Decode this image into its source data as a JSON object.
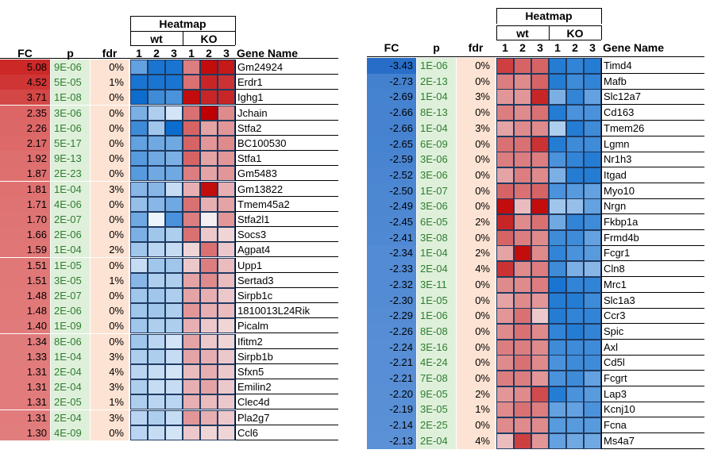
{
  "chart_data": [
    {
      "type": "heatmap",
      "title": "Heatmap",
      "headers": {
        "fc": "FC",
        "p": "p",
        "fdr": "fdr",
        "gene": "Gene Name"
      },
      "groups": [
        "wt",
        "KO"
      ],
      "replicates": [
        "1",
        "2",
        "3",
        "1",
        "2",
        "3"
      ],
      "rows": [
        {
          "fc": "5.08",
          "p": "9E-06",
          "fdr": "0%",
          "gene": "Gm24924",
          "heat": [
            -0.6,
            -0.9,
            -0.9,
            0.5,
            0.95,
            0.9
          ]
        },
        {
          "fc": "4.52",
          "p": "5E-05",
          "fdr": "1%",
          "gene": "Erdr1",
          "heat": [
            -0.9,
            -0.9,
            -0.9,
            0.55,
            0.85,
            0.8
          ]
        },
        {
          "fc": "3.71",
          "p": "1E-08",
          "fdr": "0%",
          "gene": "Ighg1",
          "heat": [
            -0.95,
            -0.75,
            -0.7,
            0.95,
            0.85,
            0.85
          ]
        },
        {
          "fc": "2.35",
          "p": "3E-06",
          "fdr": "0%",
          "gene": "Jchain",
          "heat": [
            -0.5,
            -0.3,
            -0.15,
            0.55,
            1.0,
            0.45
          ]
        },
        {
          "fc": "2.26",
          "p": "1E-06",
          "fdr": "0%",
          "gene": "Stfa2",
          "heat": [
            -0.75,
            -0.35,
            -0.95,
            0.6,
            0.35,
            0.4
          ]
        },
        {
          "fc": "2.17",
          "p": "5E-17",
          "fdr": "0%",
          "gene": "BC100530",
          "heat": [
            -0.6,
            -0.55,
            -0.55,
            0.6,
            0.4,
            0.45
          ]
        },
        {
          "fc": "1.92",
          "p": "9E-13",
          "fdr": "0%",
          "gene": "Stfa1",
          "heat": [
            -0.65,
            -0.55,
            -0.5,
            0.6,
            0.35,
            0.4
          ]
        },
        {
          "fc": "1.87",
          "p": "2E-23",
          "fdr": "0%",
          "gene": "Gm5483",
          "heat": [
            -0.65,
            -0.55,
            -0.55,
            0.5,
            0.35,
            0.4
          ]
        },
        {
          "fc": "1.81",
          "p": "1E-04",
          "fdr": "3%",
          "gene": "Gm13822",
          "heat": [
            -0.45,
            -0.45,
            -0.2,
            0.3,
            0.95,
            0.3
          ]
        },
        {
          "fc": "1.71",
          "p": "4E-06",
          "fdr": "0%",
          "gene": "Tmem45a2",
          "heat": [
            -0.4,
            -0.45,
            -0.55,
            0.55,
            0.3,
            0.35
          ]
        },
        {
          "fc": "1.70",
          "p": "2E-07",
          "fdr": "0%",
          "gene": "Stfa2l1",
          "heat": [
            -0.55,
            -0.05,
            -0.7,
            0.5,
            0.05,
            0.4
          ]
        },
        {
          "fc": "1.66",
          "p": "2E-06",
          "fdr": "0%",
          "gene": "Socs3",
          "heat": [
            -0.5,
            -0.35,
            -0.3,
            0.55,
            0.2,
            0.15
          ]
        },
        {
          "fc": "1.59",
          "p": "1E-04",
          "fdr": "2%",
          "gene": "Agpat4",
          "heat": [
            -0.35,
            -0.25,
            -0.2,
            0.15,
            0.55,
            0.2
          ]
        },
        {
          "fc": "1.51",
          "p": "1E-05",
          "fdr": "0%",
          "gene": "Upp1",
          "heat": [
            -0.2,
            -0.35,
            -0.35,
            0.2,
            0.5,
            0.25
          ]
        },
        {
          "fc": "1.51",
          "p": "3E-05",
          "fdr": "1%",
          "gene": "Sertad3",
          "heat": [
            -0.45,
            -0.3,
            -0.3,
            0.35,
            0.45,
            0.25
          ]
        },
        {
          "fc": "1.48",
          "p": "2E-07",
          "fdr": "0%",
          "gene": "Sirpb1c",
          "heat": [
            -0.35,
            -0.35,
            -0.3,
            0.35,
            0.3,
            0.2
          ]
        },
        {
          "fc": "1.48",
          "p": "2E-06",
          "fdr": "0%",
          "gene": "1810013L24Rik",
          "heat": [
            -0.35,
            -0.35,
            -0.3,
            0.4,
            0.3,
            0.25
          ]
        },
        {
          "fc": "1.40",
          "p": "1E-09",
          "fdr": "0%",
          "gene": "Picalm",
          "heat": [
            -0.35,
            -0.3,
            -0.3,
            0.3,
            0.2,
            0.15
          ]
        },
        {
          "fc": "1.34",
          "p": "8E-06",
          "fdr": "0%",
          "gene": "Ifitm2",
          "heat": [
            -0.35,
            -0.25,
            -0.15,
            0.35,
            0.2,
            0.15
          ]
        },
        {
          "fc": "1.33",
          "p": "1E-04",
          "fdr": "3%",
          "gene": "Sirpb1b",
          "heat": [
            -0.3,
            -0.3,
            -0.2,
            0.35,
            0.3,
            0.2
          ]
        },
        {
          "fc": "1.31",
          "p": "2E-04",
          "fdr": "4%",
          "gene": "Sfxn5",
          "heat": [
            -0.25,
            -0.2,
            -0.15,
            0.25,
            0.3,
            0.2
          ]
        },
        {
          "fc": "1.31",
          "p": "2E-04",
          "fdr": "3%",
          "gene": "Emilin2",
          "heat": [
            -0.3,
            -0.2,
            -0.2,
            0.3,
            0.35,
            0.2
          ]
        },
        {
          "fc": "1.31",
          "p": "2E-05",
          "fdr": "1%",
          "gene": "Clec4d",
          "heat": [
            -0.3,
            -0.25,
            -0.25,
            0.3,
            0.25,
            0.2
          ]
        },
        {
          "fc": "1.31",
          "p": "2E-04",
          "fdr": "3%",
          "gene": "Pla2g7",
          "heat": [
            -0.25,
            -0.3,
            -0.2,
            0.4,
            0.3,
            0.2
          ]
        },
        {
          "fc": "1.30",
          "p": "4E-09",
          "fdr": "0%",
          "gene": "Ccl6",
          "heat": [
            -0.25,
            -0.2,
            -0.15,
            0.2,
            0.15,
            0.15
          ]
        }
      ]
    },
    {
      "type": "heatmap",
      "title": "Heatmap",
      "headers": {
        "fc": "FC",
        "p": "p",
        "fdr": "fdr",
        "gene": "Gene Name"
      },
      "groups": [
        "wt",
        "KO"
      ],
      "replicates": [
        "1",
        "2",
        "3",
        "1",
        "2",
        "3"
      ],
      "rows": [
        {
          "fc": "-3.43",
          "p": "1E-06",
          "fdr": "0%",
          "gene": "Timd4",
          "heat": [
            0.75,
            0.6,
            0.6,
            -0.85,
            -0.8,
            -0.85
          ]
        },
        {
          "fc": "-2.73",
          "p": "2E-13",
          "fdr": "0%",
          "gene": "Mafb",
          "heat": [
            0.5,
            0.45,
            0.6,
            -0.85,
            -0.75,
            -0.8
          ]
        },
        {
          "fc": "-2.69",
          "p": "1E-04",
          "fdr": "3%",
          "gene": "Slc12a7",
          "heat": [
            0.4,
            0.4,
            0.85,
            -0.5,
            -0.8,
            -0.6
          ]
        },
        {
          "fc": "-2.66",
          "p": "8E-13",
          "fdr": "0%",
          "gene": "Cd163",
          "heat": [
            0.5,
            0.45,
            0.55,
            -0.85,
            -0.7,
            -0.7
          ]
        },
        {
          "fc": "-2.66",
          "p": "1E-04",
          "fdr": "3%",
          "gene": "Tmem26",
          "heat": [
            0.35,
            0.45,
            0.45,
            -0.3,
            -0.85,
            -0.75
          ]
        },
        {
          "fc": "-2.65",
          "p": "6E-09",
          "fdr": "0%",
          "gene": "Lgmn",
          "heat": [
            0.55,
            0.55,
            0.8,
            -0.85,
            -0.75,
            -0.75
          ]
        },
        {
          "fc": "-2.59",
          "p": "3E-06",
          "fdr": "0%",
          "gene": "Nr1h3",
          "heat": [
            0.5,
            0.5,
            0.5,
            -0.7,
            -0.8,
            -0.85
          ]
        },
        {
          "fc": "-2.52",
          "p": "3E-06",
          "fdr": "0%",
          "gene": "Itgad",
          "heat": [
            0.35,
            0.5,
            0.45,
            -0.5,
            -0.85,
            -0.85
          ]
        },
        {
          "fc": "-2.50",
          "p": "1E-07",
          "fdr": "0%",
          "gene": "Myo10",
          "heat": [
            0.6,
            0.55,
            0.6,
            -0.7,
            -0.65,
            -0.6
          ]
        },
        {
          "fc": "-2.49",
          "p": "3E-06",
          "fdr": "0%",
          "gene": "Nrgn",
          "heat": [
            0.95,
            0.25,
            0.95,
            -0.35,
            -0.4,
            -0.6
          ]
        },
        {
          "fc": "-2.45",
          "p": "6E-05",
          "fdr": "2%",
          "gene": "Fkbp1a",
          "heat": [
            0.85,
            0.45,
            0.55,
            -0.55,
            -0.8,
            -0.75
          ]
        },
        {
          "fc": "-2.41",
          "p": "3E-08",
          "fdr": "0%",
          "gene": "Frmd4b",
          "heat": [
            0.6,
            0.5,
            0.45,
            -0.75,
            -0.75,
            -0.6
          ]
        },
        {
          "fc": "-2.34",
          "p": "1E-04",
          "fdr": "2%",
          "gene": "Fcgr1",
          "heat": [
            0.35,
            0.95,
            0.45,
            -0.8,
            -0.7,
            -0.65
          ]
        },
        {
          "fc": "-2.33",
          "p": "2E-04",
          "fdr": "4%",
          "gene": "Cln8",
          "heat": [
            0.8,
            0.45,
            0.5,
            -0.75,
            -0.5,
            -0.45
          ]
        },
        {
          "fc": "-2.32",
          "p": "3E-11",
          "fdr": "0%",
          "gene": "Mrc1",
          "heat": [
            0.45,
            0.45,
            0.5,
            -0.9,
            -0.8,
            -0.8
          ]
        },
        {
          "fc": "-2.30",
          "p": "1E-05",
          "fdr": "0%",
          "gene": "Slc1a3",
          "heat": [
            0.35,
            0.45,
            0.4,
            -0.85,
            -0.85,
            -0.75
          ]
        },
        {
          "fc": "-2.29",
          "p": "1E-06",
          "fdr": "0%",
          "gene": "Ccr3",
          "heat": [
            0.4,
            0.55,
            0.2,
            -0.85,
            -0.8,
            -0.8
          ]
        },
        {
          "fc": "-2.26",
          "p": "8E-08",
          "fdr": "0%",
          "gene": "Spic",
          "heat": [
            0.45,
            0.55,
            0.45,
            -0.8,
            -0.85,
            -0.8
          ]
        },
        {
          "fc": "-2.24",
          "p": "3E-16",
          "fdr": "0%",
          "gene": "Axl",
          "heat": [
            0.5,
            0.5,
            0.45,
            -0.75,
            -0.75,
            -0.75
          ]
        },
        {
          "fc": "-2.21",
          "p": "4E-24",
          "fdr": "0%",
          "gene": "Cd5l",
          "heat": [
            0.45,
            0.55,
            0.45,
            -0.7,
            -0.75,
            -0.75
          ]
        },
        {
          "fc": "-2.21",
          "p": "7E-08",
          "fdr": "0%",
          "gene": "Fcgrt",
          "heat": [
            0.5,
            0.5,
            0.4,
            -0.7,
            -0.75,
            -0.6
          ]
        },
        {
          "fc": "-2.20",
          "p": "9E-05",
          "fdr": "2%",
          "gene": "Lap3",
          "heat": [
            0.4,
            0.45,
            0.7,
            -0.85,
            -0.7,
            -0.65
          ]
        },
        {
          "fc": "-2.19",
          "p": "3E-05",
          "fdr": "1%",
          "gene": "Kcnj10",
          "heat": [
            0.45,
            0.55,
            0.5,
            -0.6,
            -0.6,
            -0.7
          ]
        },
        {
          "fc": "-2.14",
          "p": "2E-25",
          "fdr": "0%",
          "gene": "Fcna",
          "heat": [
            0.45,
            0.45,
            0.45,
            -0.65,
            -0.65,
            -0.65
          ]
        },
        {
          "fc": "-2.13",
          "p": "2E-04",
          "fdr": "4%",
          "gene": "Ms4a7",
          "heat": [
            0.25,
            0.75,
            0.4,
            -0.6,
            -0.55,
            -0.55
          ]
        }
      ]
    }
  ]
}
